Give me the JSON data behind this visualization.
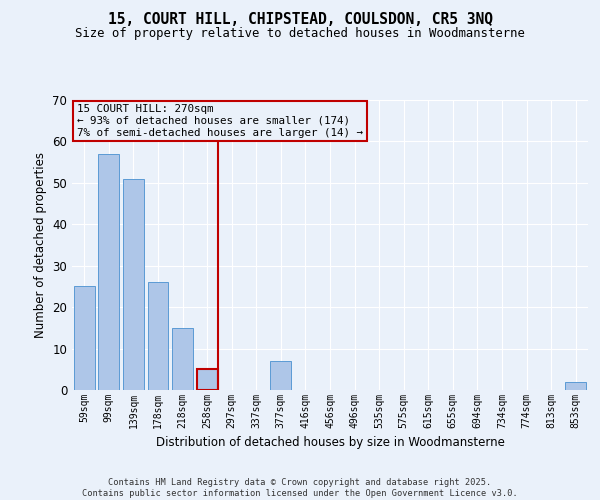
{
  "title": "15, COURT HILL, CHIPSTEAD, COULSDON, CR5 3NQ",
  "subtitle": "Size of property relative to detached houses in Woodmansterne",
  "xlabel": "Distribution of detached houses by size in Woodmansterne",
  "ylabel": "Number of detached properties",
  "categories": [
    "59sqm",
    "99sqm",
    "139sqm",
    "178sqm",
    "218sqm",
    "258sqm",
    "297sqm",
    "337sqm",
    "377sqm",
    "416sqm",
    "456sqm",
    "496sqm",
    "535sqm",
    "575sqm",
    "615sqm",
    "655sqm",
    "694sqm",
    "734sqm",
    "774sqm",
    "813sqm",
    "853sqm"
  ],
  "values": [
    25,
    57,
    51,
    26,
    15,
    5,
    0,
    0,
    7,
    0,
    0,
    0,
    0,
    0,
    0,
    0,
    0,
    0,
    0,
    0,
    2
  ],
  "bar_color": "#aec6e8",
  "bar_edge_color": "#5b9bd5",
  "highlight_bar_index": 5,
  "highlight_color": "#c00000",
  "marker_label": "15 COURT HILL: 270sqm",
  "marker_stat1": "← 93% of detached houses are smaller (174)",
  "marker_stat2": "7% of semi-detached houses are larger (14) →",
  "annotation_box_color": "#c00000",
  "ylim": [
    0,
    70
  ],
  "yticks": [
    0,
    10,
    20,
    30,
    40,
    50,
    60,
    70
  ],
  "background_color": "#eaf1fa",
  "grid_color": "#ffffff",
  "footer1": "Contains HM Land Registry data © Crown copyright and database right 2025.",
  "footer2": "Contains public sector information licensed under the Open Government Licence v3.0."
}
